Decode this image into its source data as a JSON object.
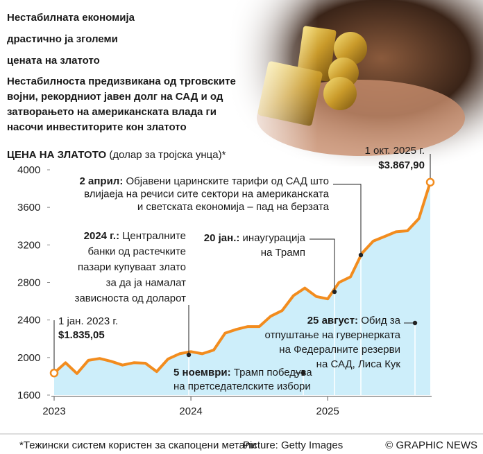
{
  "chart_data": {
    "type": "line",
    "title": [
      "Нестабилната економија",
      "драстично ја зголеми",
      "цената на златото"
    ],
    "subtitle": [
      "Нестабилноста предизвикана од трговските",
      "војни, рекордниот јавен долг на САД и од",
      "затворањето на американската влада ги",
      "насочи инвеститорите кон златото"
    ],
    "axis_title": {
      "bold": "ЦЕНА НА ЗЛАТОТО",
      "rest": " (долар за тројска унца)*"
    },
    "x": [
      2023,
      2023.083,
      2023.167,
      2023.25,
      2023.333,
      2023.417,
      2023.5,
      2023.583,
      2023.667,
      2023.75,
      2023.833,
      2023.917,
      2024,
      2024.083,
      2024.167,
      2024.25,
      2024.333,
      2024.417,
      2024.5,
      2024.583,
      2024.667,
      2024.75,
      2024.833,
      2024.917,
      2025,
      2025.083,
      2025.167,
      2025.25,
      2025.333,
      2025.417,
      2025.5,
      2025.583,
      2025.667,
      2025.75
    ],
    "series": [
      {
        "color": "#f28c1e",
        "values": [
          1835.05,
          1945,
          1830,
          1970,
          1990,
          1960,
          1920,
          1945,
          1940,
          1850,
          1985,
          2040,
          2063,
          2040,
          2080,
          2260,
          2300,
          2330,
          2330,
          2440,
          2500,
          2660,
          2740,
          2650,
          2625,
          2800,
          2860,
          3110,
          3240,
          3290,
          3340,
          3350,
          3480,
          3867.9
        ],
        "value_labels": [
          "$1.835,05",
          null,
          null,
          null,
          null,
          null,
          null,
          null,
          null,
          null,
          null,
          null,
          null,
          null,
          null,
          null,
          null,
          null,
          null,
          null,
          null,
          null,
          null,
          null,
          null,
          null,
          null,
          null,
          null,
          null,
          null,
          null,
          null,
          "$3.867,90"
        ],
        "date_labels": [
          "1 јан. 2023 г.",
          null,
          null,
          null,
          null,
          null,
          null,
          null,
          null,
          null,
          null,
          null,
          null,
          null,
          null,
          null,
          null,
          null,
          null,
          null,
          null,
          null,
          null,
          null,
          null,
          null,
          null,
          null,
          null,
          null,
          null,
          null,
          null,
          "1 окт. 2025 г."
        ]
      }
    ],
    "area_color": "#cdeefa",
    "xlim": [
      2023,
      2025.75
    ],
    "xticks": [
      2023,
      2024,
      2025
    ],
    "ylim": [
      1600,
      4000
    ],
    "yticks": [
      1600,
      2000,
      2400,
      2800,
      3200,
      3600,
      4000
    ],
    "annotations": [
      {
        "bold": "2024 г.:",
        "lines": [
          " Централните",
          "банки од растечките",
          "пазари купуваат злато",
          "за да ја намалат",
          "зависноста од доларот"
        ]
      },
      {
        "bold": "2 април:",
        "lines": [
          " Објавени царинските тарифи од САД што",
          "влијаеја на речиси сите сектори на американската",
          "и светската економија – пад на берзата"
        ]
      },
      {
        "bold": "20 јан.:",
        "lines": [
          " инаугурација",
          "на Трамп"
        ]
      },
      {
        "bold": "25 август:",
        "lines": [
          " Обид за",
          "отпуштање на гувернерката",
          "на Федералните резерви",
          "на САД, Лиса Кук"
        ]
      },
      {
        "bold": "5 ноември:",
        "lines": [
          " Трамп победува",
          "на претседателските избори"
        ]
      }
    ],
    "footnote": "*Тежински систем користен за скапоцени метали",
    "credit": "Picture: Getty Images",
    "source": "© GRAPHIC NEWS"
  }
}
